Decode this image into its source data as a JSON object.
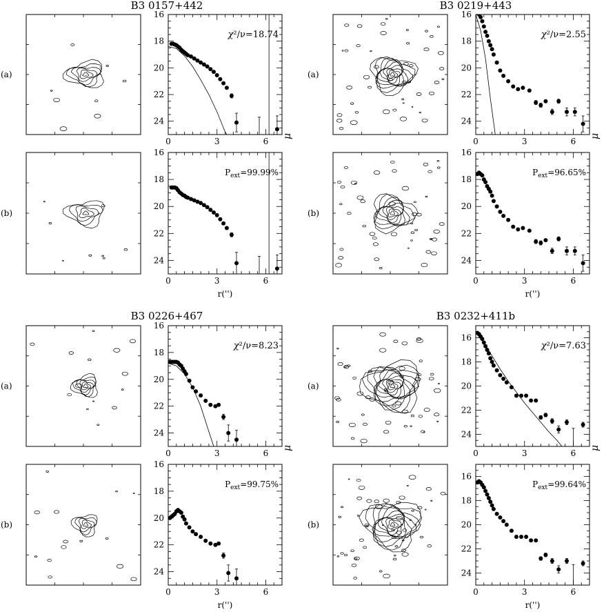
{
  "figure": {
    "row_labels": [
      "(a)",
      "(b)"
    ],
    "xlabel": "r('')",
    "ylabel": "μ",
    "panels": [
      {
        "title": "B3  0157+442",
        "fit_stat": {
          "prefix": "χ",
          "text": "²/ν=18.74"
        },
        "pext": {
          "prefix": "P",
          "sub": "ext",
          "text": "=99.99%"
        }
      },
      {
        "title": "B3  0219+443",
        "fit_stat": {
          "prefix": "χ",
          "text": "²/ν=2.55"
        },
        "pext": {
          "prefix": "P",
          "sub": "ext",
          "text": "=96.65%"
        }
      },
      {
        "title": "B3  0226+467",
        "fit_stat": {
          "prefix": "χ",
          "text": "²/ν=8.23"
        },
        "pext": {
          "prefix": "P",
          "sub": "ext",
          "text": "=99.75%"
        }
      },
      {
        "title": "B3  0232+411b",
        "fit_stat": {
          "prefix": "χ",
          "text": "²/ν=7.63"
        },
        "pext": {
          "prefix": "P",
          "sub": "ext",
          "text": "=99.64%"
        }
      }
    ]
  },
  "chart_data": [
    {
      "type": "scatter",
      "panel": "B3 0157+442 (a)",
      "xlim": [
        0,
        7
      ],
      "ylim": [
        25,
        16
      ],
      "xticks": [
        0,
        3,
        6
      ],
      "yticks": [
        16,
        18,
        20,
        22,
        24
      ],
      "points": [
        [
          0.2,
          18.2
        ],
        [
          0.3,
          18.2
        ],
        [
          0.4,
          18.25
        ],
        [
          0.5,
          18.3
        ],
        [
          0.6,
          18.4
        ],
        [
          0.7,
          18.5
        ],
        [
          0.8,
          18.65
        ],
        [
          0.9,
          18.75
        ],
        [
          1.0,
          18.85
        ],
        [
          1.1,
          18.95
        ],
        [
          1.2,
          19.05
        ],
        [
          1.4,
          19.15
        ],
        [
          1.6,
          19.3
        ],
        [
          1.8,
          19.45
        ],
        [
          2.0,
          19.6
        ],
        [
          2.2,
          19.75
        ],
        [
          2.4,
          19.9
        ],
        [
          2.6,
          20.1
        ],
        [
          2.8,
          20.3
        ],
        [
          3.0,
          20.55
        ],
        [
          3.2,
          20.85
        ],
        [
          3.4,
          21.15
        ],
        [
          3.6,
          21.5
        ],
        [
          3.9,
          22.1
        ],
        [
          4.2,
          24.1
        ],
        [
          6.7,
          24.6
        ]
      ],
      "errors": [
        [
          3.9,
          22.1,
          0.15
        ],
        [
          4.2,
          24.1,
          0.7
        ],
        [
          5.6,
          24.5,
          0.8
        ],
        [
          6.7,
          24.6,
          1.0
        ]
      ],
      "model_curve": [
        [
          0,
          18.4
        ],
        [
          0.5,
          18.55
        ],
        [
          1.0,
          19.1
        ],
        [
          1.5,
          19.9
        ],
        [
          2.0,
          20.9
        ],
        [
          2.5,
          22.0
        ],
        [
          3.0,
          23.3
        ],
        [
          3.5,
          24.8
        ],
        [
          3.6,
          25.0
        ]
      ],
      "vertical_line_x": 6.2
    },
    {
      "type": "scatter",
      "panel": "B3 0157+442 (b)",
      "xlim": [
        0,
        7
      ],
      "ylim": [
        25,
        16
      ],
      "xticks": [
        0,
        3,
        6
      ],
      "yticks": [
        16,
        18,
        20,
        22,
        24
      ],
      "points": [
        [
          0.2,
          18.6
        ],
        [
          0.3,
          18.6
        ],
        [
          0.4,
          18.6
        ],
        [
          0.5,
          18.65
        ],
        [
          0.6,
          18.8
        ],
        [
          0.7,
          18.95
        ],
        [
          0.8,
          19.05
        ],
        [
          0.9,
          19.15
        ],
        [
          1.0,
          19.2
        ],
        [
          1.1,
          19.3
        ],
        [
          1.2,
          19.35
        ],
        [
          1.4,
          19.45
        ],
        [
          1.6,
          19.55
        ],
        [
          1.8,
          19.65
        ],
        [
          2.0,
          19.75
        ],
        [
          2.2,
          19.9
        ],
        [
          2.4,
          20.05
        ],
        [
          2.6,
          20.25
        ],
        [
          2.8,
          20.45
        ],
        [
          3.0,
          20.65
        ],
        [
          3.2,
          20.95
        ],
        [
          3.4,
          21.25
        ],
        [
          3.6,
          21.6
        ],
        [
          3.9,
          22.1
        ],
        [
          4.2,
          24.2
        ],
        [
          6.7,
          24.6
        ]
      ],
      "errors": [
        [
          3.9,
          22.1,
          0.15
        ],
        [
          4.2,
          24.2,
          0.8
        ],
        [
          5.6,
          24.5,
          0.8
        ],
        [
          6.7,
          24.6,
          1.0
        ]
      ],
      "vertical_line_x": 6.2
    },
    {
      "type": "scatter",
      "panel": "B3 0219+443 (a)",
      "xlim": [
        0,
        7
      ],
      "ylim": [
        25,
        16
      ],
      "xticks": [
        0,
        3,
        6
      ],
      "yticks": [
        16,
        18,
        20,
        22,
        24
      ],
      "points": [
        [
          0.1,
          15.9
        ],
        [
          0.2,
          16.0
        ],
        [
          0.3,
          16.2
        ],
        [
          0.4,
          16.5
        ],
        [
          0.5,
          16.9
        ],
        [
          0.6,
          17.3
        ],
        [
          0.7,
          17.6
        ],
        [
          0.8,
          18.0
        ],
        [
          0.9,
          18.3
        ],
        [
          1.0,
          18.6
        ],
        [
          1.1,
          19.0
        ],
        [
          1.3,
          19.6
        ],
        [
          1.5,
          20.2
        ],
        [
          1.7,
          20.6
        ],
        [
          2.0,
          21.0
        ],
        [
          2.3,
          21.4
        ],
        [
          2.6,
          21.6
        ],
        [
          2.9,
          21.5
        ],
        [
          3.3,
          21.7
        ],
        [
          3.7,
          22.6
        ],
        [
          4.0,
          22.8
        ],
        [
          4.3,
          22.5
        ],
        [
          4.7,
          23.3
        ],
        [
          5.1,
          22.5
        ],
        [
          5.6,
          23.3
        ],
        [
          6.1,
          23.3
        ],
        [
          6.6,
          24.2
        ]
      ],
      "errors": [
        [
          3.7,
          22.6,
          0.15
        ],
        [
          4.0,
          22.8,
          0.15
        ],
        [
          4.7,
          23.3,
          0.2
        ],
        [
          5.1,
          22.5,
          0.15
        ],
        [
          5.6,
          23.3,
          0.3
        ],
        [
          6.1,
          23.3,
          0.3
        ],
        [
          6.6,
          24.2,
          0.6
        ]
      ],
      "model_curve": [
        [
          0,
          16.0
        ],
        [
          0.3,
          17.2
        ],
        [
          0.6,
          19.3
        ],
        [
          0.9,
          22.3
        ],
        [
          1.2,
          25.0
        ]
      ]
    },
    {
      "type": "scatter",
      "panel": "B3 0219+443 (b)",
      "xlim": [
        0,
        7
      ],
      "ylim": [
        25,
        16
      ],
      "xticks": [
        0,
        3,
        6
      ],
      "yticks": [
        16,
        18,
        20,
        22,
        24
      ],
      "points": [
        [
          0.1,
          17.6
        ],
        [
          0.2,
          17.5
        ],
        [
          0.3,
          17.6
        ],
        [
          0.4,
          17.7
        ],
        [
          0.5,
          18.0
        ],
        [
          0.6,
          18.2
        ],
        [
          0.7,
          18.5
        ],
        [
          0.8,
          18.7
        ],
        [
          0.9,
          18.9
        ],
        [
          1.0,
          19.2
        ],
        [
          1.1,
          19.6
        ],
        [
          1.3,
          20.0
        ],
        [
          1.5,
          20.4
        ],
        [
          1.7,
          20.7
        ],
        [
          2.0,
          21.0
        ],
        [
          2.3,
          21.5
        ],
        [
          2.6,
          21.7
        ],
        [
          2.9,
          21.6
        ],
        [
          3.3,
          21.8
        ],
        [
          3.7,
          22.6
        ],
        [
          4.0,
          22.7
        ],
        [
          4.3,
          22.5
        ],
        [
          4.7,
          23.3
        ],
        [
          5.1,
          22.4
        ],
        [
          5.6,
          23.3
        ],
        [
          6.1,
          23.3
        ],
        [
          6.6,
          24.2
        ]
      ],
      "errors": [
        [
          3.7,
          22.6,
          0.15
        ],
        [
          4.0,
          22.7,
          0.15
        ],
        [
          4.7,
          23.3,
          0.2
        ],
        [
          5.1,
          22.4,
          0.15
        ],
        [
          5.6,
          23.3,
          0.3
        ],
        [
          6.1,
          23.3,
          0.3
        ],
        [
          6.6,
          24.2,
          0.6
        ]
      ]
    },
    {
      "type": "scatter",
      "panel": "B3 0226+467 (a)",
      "xlim": [
        0,
        7
      ],
      "ylim": [
        25,
        16
      ],
      "xticks": [
        0,
        3,
        6
      ],
      "yticks": [
        16,
        18,
        20,
        22,
        24
      ],
      "points": [
        [
          0.1,
          18.7
        ],
        [
          0.2,
          18.7
        ],
        [
          0.3,
          18.7
        ],
        [
          0.4,
          18.7
        ],
        [
          0.5,
          18.7
        ],
        [
          0.6,
          18.75
        ],
        [
          0.7,
          18.9
        ],
        [
          0.8,
          19.0
        ],
        [
          0.9,
          19.2
        ],
        [
          1.0,
          19.4
        ],
        [
          1.1,
          19.6
        ],
        [
          1.3,
          20.1
        ],
        [
          1.5,
          20.6
        ],
        [
          1.7,
          20.9
        ],
        [
          2.0,
          21.2
        ],
        [
          2.3,
          21.6
        ],
        [
          2.6,
          21.9
        ],
        [
          2.9,
          22.0
        ],
        [
          3.1,
          21.9
        ],
        [
          3.4,
          22.8
        ],
        [
          3.7,
          24.0
        ],
        [
          4.2,
          24.5
        ]
      ],
      "errors": [
        [
          3.4,
          22.8,
          0.2
        ],
        [
          3.7,
          24.0,
          0.6
        ],
        [
          4.2,
          24.5,
          0.7
        ]
      ],
      "model_curve": [
        [
          0,
          18.8
        ],
        [
          0.5,
          19.0
        ],
        [
          1.0,
          19.6
        ],
        [
          1.5,
          20.6
        ],
        [
          2.0,
          22.0
        ],
        [
          2.5,
          23.9
        ],
        [
          2.8,
          25.0
        ]
      ]
    },
    {
      "type": "scatter",
      "panel": "B3 0226+467 (b)",
      "xlim": [
        0,
        7
      ],
      "ylim": [
        25,
        16
      ],
      "xticks": [
        0,
        3,
        6
      ],
      "yticks": [
        16,
        18,
        20,
        22,
        24
      ],
      "points": [
        [
          0.1,
          20.0
        ],
        [
          0.2,
          19.9
        ],
        [
          0.3,
          19.8
        ],
        [
          0.4,
          19.7
        ],
        [
          0.5,
          19.5
        ],
        [
          0.6,
          19.4
        ],
        [
          0.7,
          19.5
        ],
        [
          0.8,
          19.6
        ],
        [
          0.9,
          19.9
        ],
        [
          1.0,
          20.1
        ],
        [
          1.1,
          20.4
        ],
        [
          1.3,
          20.7
        ],
        [
          1.5,
          21.0
        ],
        [
          1.7,
          21.2
        ],
        [
          2.0,
          21.4
        ],
        [
          2.3,
          21.7
        ],
        [
          2.6,
          21.9
        ],
        [
          2.9,
          22.0
        ],
        [
          3.1,
          21.9
        ],
        [
          3.4,
          22.8
        ],
        [
          3.7,
          24.1
        ],
        [
          4.2,
          24.5
        ]
      ],
      "errors": [
        [
          3.4,
          22.8,
          0.2
        ],
        [
          3.7,
          24.1,
          0.6
        ],
        [
          4.2,
          24.5,
          0.7
        ]
      ]
    },
    {
      "type": "scatter",
      "panel": "B3 0232+411b (a)",
      "xlim": [
        0,
        7
      ],
      "ylim": [
        25,
        15
      ],
      "xticks": [
        0,
        3,
        6
      ],
      "yticks": [
        16,
        18,
        20,
        22,
        24
      ],
      "points": [
        [
          0.1,
          15.6
        ],
        [
          0.2,
          15.7
        ],
        [
          0.3,
          15.9
        ],
        [
          0.4,
          16.1
        ],
        [
          0.5,
          16.4
        ],
        [
          0.6,
          16.7
        ],
        [
          0.7,
          17.0
        ],
        [
          0.8,
          17.3
        ],
        [
          0.9,
          17.7
        ],
        [
          1.0,
          18.0
        ],
        [
          1.1,
          18.3
        ],
        [
          1.3,
          18.7
        ],
        [
          1.5,
          19.1
        ],
        [
          1.7,
          19.4
        ],
        [
          1.9,
          19.7
        ],
        [
          2.2,
          20.1
        ],
        [
          2.5,
          20.8
        ],
        [
          2.8,
          20.8
        ],
        [
          3.1,
          20.8
        ],
        [
          3.4,
          21.2
        ],
        [
          3.7,
          21.2
        ],
        [
          4.0,
          22.6
        ],
        [
          4.3,
          22.4
        ],
        [
          4.7,
          22.9
        ],
        [
          5.1,
          23.6
        ],
        [
          5.6,
          23.0
        ],
        [
          6.6,
          23.2
        ]
      ],
      "errors": [
        [
          4.0,
          22.6,
          0.15
        ],
        [
          4.3,
          22.4,
          0.15
        ],
        [
          4.7,
          22.9,
          0.2
        ],
        [
          5.1,
          23.6,
          0.3
        ],
        [
          5.6,
          23.0,
          0.2
        ],
        [
          6.0,
          24.5,
          1.0
        ],
        [
          6.6,
          23.2,
          0.2
        ]
      ],
      "model_curve": [
        [
          0,
          15.6
        ],
        [
          0.5,
          16.4
        ],
        [
          1.0,
          17.5
        ],
        [
          1.5,
          18.6
        ],
        [
          2.0,
          19.6
        ],
        [
          2.5,
          20.5
        ],
        [
          3.0,
          21.4
        ],
        [
          3.5,
          22.2
        ],
        [
          4.0,
          23.0
        ],
        [
          4.5,
          23.8
        ],
        [
          5.0,
          24.5
        ],
        [
          5.3,
          25.0
        ]
      ]
    },
    {
      "type": "scatter",
      "panel": "B3 0232+411b (b)",
      "xlim": [
        0,
        7
      ],
      "ylim": [
        25,
        15
      ],
      "xticks": [
        0,
        3,
        6
      ],
      "yticks": [
        16,
        18,
        20,
        22,
        24
      ],
      "points": [
        [
          0.1,
          16.5
        ],
        [
          0.2,
          16.4
        ],
        [
          0.3,
          16.5
        ],
        [
          0.4,
          16.7
        ],
        [
          0.5,
          16.9
        ],
        [
          0.6,
          17.2
        ],
        [
          0.7,
          17.5
        ],
        [
          0.8,
          17.8
        ],
        [
          0.9,
          18.1
        ],
        [
          1.0,
          18.4
        ],
        [
          1.1,
          18.7
        ],
        [
          1.3,
          19.1
        ],
        [
          1.5,
          19.4
        ],
        [
          1.7,
          19.7
        ],
        [
          1.9,
          20.0
        ],
        [
          2.2,
          20.5
        ],
        [
          2.5,
          21.0
        ],
        [
          2.8,
          21.0
        ],
        [
          3.1,
          21.0
        ],
        [
          3.4,
          21.3
        ],
        [
          3.7,
          21.3
        ],
        [
          4.0,
          22.8
        ],
        [
          4.3,
          22.5
        ],
        [
          4.7,
          23.0
        ],
        [
          5.1,
          23.7
        ],
        [
          5.6,
          23.0
        ],
        [
          6.6,
          23.2
        ]
      ],
      "errors": [
        [
          4.0,
          22.8,
          0.15
        ],
        [
          4.3,
          22.5,
          0.15
        ],
        [
          4.7,
          23.0,
          0.2
        ],
        [
          5.1,
          23.7,
          0.3
        ],
        [
          5.6,
          23.0,
          0.2
        ],
        [
          6.0,
          24.3,
          1.0
        ],
        [
          6.6,
          23.2,
          0.2
        ]
      ]
    }
  ]
}
